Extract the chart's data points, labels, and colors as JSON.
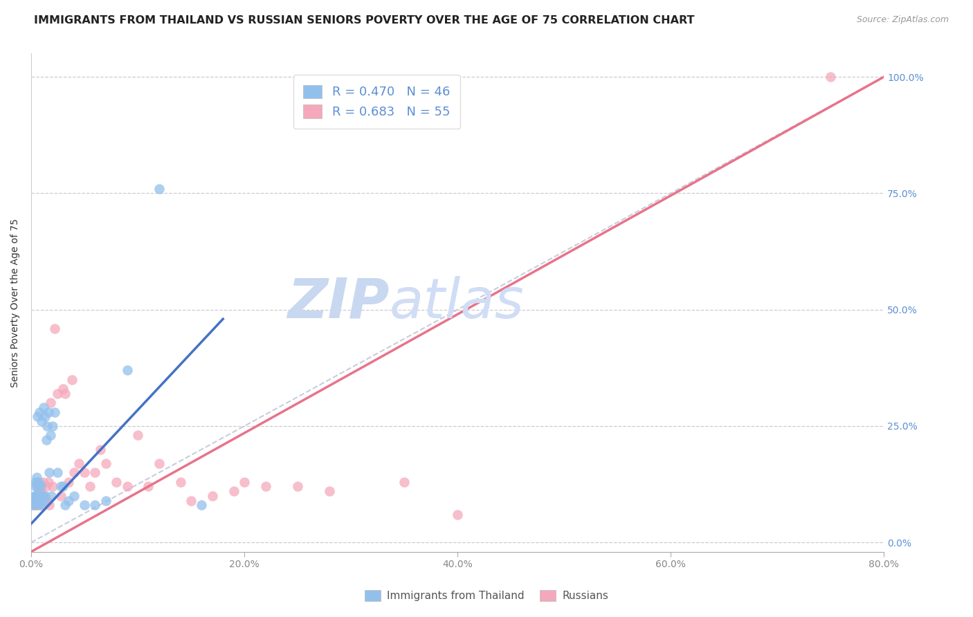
{
  "title": "IMMIGRANTS FROM THAILAND VS RUSSIAN SENIORS POVERTY OVER THE AGE OF 75 CORRELATION CHART",
  "source": "Source: ZipAtlas.com",
  "ylabel": "Seniors Poverty Over the Age of 75",
  "xlabel_ticks": [
    "0.0%",
    "20.0%",
    "40.0%",
    "60.0%",
    "80.0%"
  ],
  "xlabel_vals": [
    0.0,
    0.2,
    0.4,
    0.6,
    0.8
  ],
  "yright_ticks": [
    "100.0%",
    "75.0%",
    "50.0%",
    "25.0%",
    "0.0%"
  ],
  "yright_vals": [
    1.0,
    0.75,
    0.5,
    0.25,
    0.0
  ],
  "xlim": [
    0.0,
    0.8
  ],
  "ylim": [
    -0.02,
    1.05
  ],
  "thailand_R": 0.47,
  "thailand_N": 46,
  "russia_R": 0.683,
  "russia_N": 55,
  "thailand_color": "#92C0EC",
  "russia_color": "#F5A8BB",
  "thailand_line_color": "#4472C4",
  "russia_line_color": "#E8738A",
  "ref_line_color": "#C0C8D8",
  "watermark_zip": "ZIP",
  "watermark_atlas": "atlas",
  "watermark_color": "#C8D8F0",
  "title_fontsize": 11.5,
  "source_fontsize": 9,
  "label_fontsize": 10,
  "tick_fontsize": 10,
  "thailand_x": [
    0.002,
    0.003,
    0.003,
    0.004,
    0.004,
    0.004,
    0.005,
    0.005,
    0.005,
    0.005,
    0.006,
    0.006,
    0.006,
    0.007,
    0.007,
    0.008,
    0.008,
    0.009,
    0.009,
    0.01,
    0.01,
    0.011,
    0.012,
    0.012,
    0.013,
    0.013,
    0.014,
    0.015,
    0.016,
    0.017,
    0.018,
    0.019,
    0.02,
    0.022,
    0.025,
    0.028,
    0.03,
    0.032,
    0.035,
    0.04,
    0.05,
    0.06,
    0.07,
    0.09,
    0.12,
    0.16
  ],
  "thailand_y": [
    0.08,
    0.09,
    0.1,
    0.1,
    0.12,
    0.13,
    0.08,
    0.1,
    0.13,
    0.14,
    0.09,
    0.12,
    0.27,
    0.1,
    0.13,
    0.09,
    0.28,
    0.1,
    0.12,
    0.08,
    0.26,
    0.1,
    0.09,
    0.29,
    0.1,
    0.27,
    0.22,
    0.25,
    0.28,
    0.15,
    0.23,
    0.1,
    0.25,
    0.28,
    0.15,
    0.12,
    0.12,
    0.08,
    0.09,
    0.1,
    0.08,
    0.08,
    0.09,
    0.37,
    0.76,
    0.08
  ],
  "russia_x": [
    0.002,
    0.003,
    0.004,
    0.004,
    0.005,
    0.005,
    0.006,
    0.006,
    0.007,
    0.007,
    0.008,
    0.008,
    0.009,
    0.009,
    0.01,
    0.01,
    0.011,
    0.012,
    0.013,
    0.014,
    0.015,
    0.016,
    0.017,
    0.018,
    0.02,
    0.022,
    0.025,
    0.028,
    0.03,
    0.032,
    0.035,
    0.038,
    0.04,
    0.045,
    0.05,
    0.055,
    0.06,
    0.065,
    0.07,
    0.08,
    0.09,
    0.1,
    0.11,
    0.12,
    0.14,
    0.15,
    0.17,
    0.19,
    0.2,
    0.22,
    0.25,
    0.28,
    0.35,
    0.4,
    0.75
  ],
  "russia_y": [
    0.08,
    0.09,
    0.08,
    0.1,
    0.09,
    0.1,
    0.1,
    0.12,
    0.08,
    0.1,
    0.1,
    0.12,
    0.09,
    0.11,
    0.08,
    0.1,
    0.13,
    0.1,
    0.09,
    0.12,
    0.09,
    0.13,
    0.08,
    0.3,
    0.12,
    0.46,
    0.32,
    0.1,
    0.33,
    0.32,
    0.13,
    0.35,
    0.15,
    0.17,
    0.15,
    0.12,
    0.15,
    0.2,
    0.17,
    0.13,
    0.12,
    0.23,
    0.12,
    0.17,
    0.13,
    0.09,
    0.1,
    0.11,
    0.13,
    0.12,
    0.12,
    0.11,
    0.13,
    0.06,
    1.0
  ],
  "thailand_line_x": [
    0.0,
    0.18
  ],
  "thailand_line_y": [
    0.04,
    0.48
  ],
  "russia_line_x": [
    0.0,
    0.8
  ],
  "russia_line_y": [
    -0.02,
    1.0
  ]
}
